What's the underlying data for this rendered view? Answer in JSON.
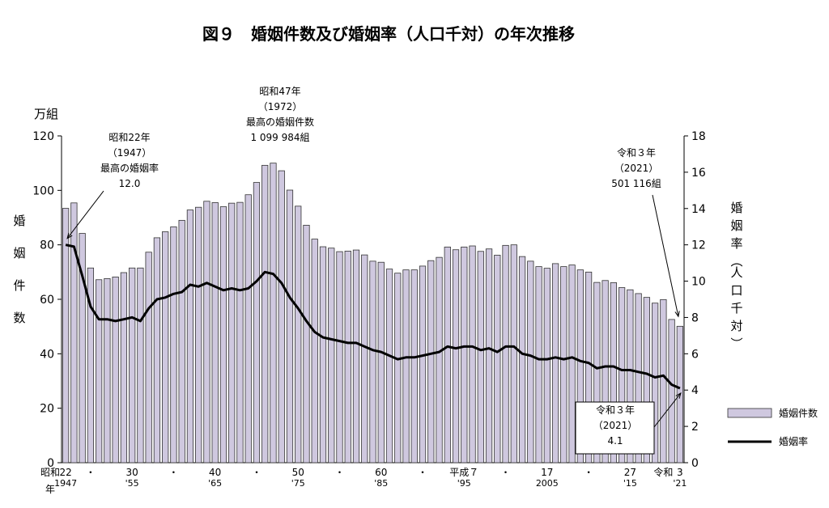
{
  "title": "図９　婚姻件数及び婚姻率（人口千対）の年次推移",
  "chart_data": {
    "type": "bar+line",
    "left_axis": {
      "unit": "万組",
      "label": "婚姻件数",
      "ticks": [
        "0",
        "20",
        "40",
        "60",
        "80",
        "100",
        "120"
      ],
      "range": [
        0,
        120
      ]
    },
    "right_axis": {
      "label": "婚姻率（人口千対）",
      "ticks": [
        "0",
        "2",
        "4",
        "6",
        "8",
        "10",
        "12",
        "14",
        "16",
        "18"
      ],
      "range": [
        0,
        18
      ]
    },
    "x_axis": {
      "era_label_top": "昭和",
      "era_label_bottom": "年",
      "ticks": [
        {
          "year": 1947,
          "top": "22",
          "bottom": "1947"
        },
        {
          "year": 1950,
          "top": "・",
          "bottom": ""
        },
        {
          "year": 1955,
          "top": "30",
          "bottom": "'55"
        },
        {
          "year": 1960,
          "top": "・",
          "bottom": ""
        },
        {
          "year": 1965,
          "top": "40",
          "bottom": "'65"
        },
        {
          "year": 1970,
          "top": "・",
          "bottom": ""
        },
        {
          "year": 1975,
          "top": "50",
          "bottom": "'75"
        },
        {
          "year": 1980,
          "top": "・",
          "bottom": ""
        },
        {
          "year": 1985,
          "top": "60",
          "bottom": "'85"
        },
        {
          "year": 1990,
          "top": "・",
          "bottom": ""
        },
        {
          "year": 1995,
          "top": "平成７",
          "bottom": "'95"
        },
        {
          "year": 2000,
          "top": "・",
          "bottom": ""
        },
        {
          "year": 2005,
          "top": "17",
          "bottom": "2005"
        },
        {
          "year": 2010,
          "top": "・",
          "bottom": ""
        },
        {
          "year": 2015,
          "top": "27",
          "bottom": "'15"
        },
        {
          "year": 2019,
          "top": "令和",
          "bottom": ""
        },
        {
          "year": 2021,
          "top": "3",
          "bottom": "'21"
        }
      ]
    },
    "series": [
      {
        "name": "婚姻件数",
        "kind": "bar",
        "axis": "left",
        "years": [
          1947,
          1948,
          1949,
          1950,
          1951,
          1952,
          1953,
          1954,
          1955,
          1956,
          1957,
          1958,
          1959,
          1960,
          1961,
          1962,
          1963,
          1964,
          1965,
          1966,
          1967,
          1968,
          1969,
          1970,
          1971,
          1972,
          1973,
          1974,
          1975,
          1976,
          1977,
          1978,
          1979,
          1980,
          1981,
          1982,
          1983,
          1984,
          1985,
          1986,
          1987,
          1988,
          1989,
          1990,
          1991,
          1992,
          1993,
          1994,
          1995,
          1996,
          1997,
          1998,
          1999,
          2000,
          2001,
          2002,
          2003,
          2004,
          2005,
          2006,
          2007,
          2008,
          2009,
          2010,
          2011,
          2012,
          2013,
          2014,
          2015,
          2016,
          2017,
          2018,
          2019,
          2020,
          2021
        ],
        "values": [
          93.4,
          95.4,
          84.2,
          71.5,
          67.2,
          67.6,
          68.2,
          69.8,
          71.5,
          71.5,
          77.3,
          82.6,
          84.8,
          86.6,
          89.0,
          92.8,
          93.8,
          96.0,
          95.5,
          94.0,
          95.3,
          95.6,
          98.4,
          102.9,
          109.2,
          110.0,
          107.2,
          100.1,
          94.2,
          87.2,
          82.1,
          79.3,
          78.8,
          77.5,
          77.7,
          78.1,
          76.3,
          74.0,
          73.6,
          71.1,
          69.6,
          70.8,
          70.8,
          72.2,
          74.2,
          75.4,
          79.2,
          78.2,
          79.2,
          79.6,
          77.6,
          78.5,
          76.2,
          79.8,
          80.0,
          75.7,
          74.0,
          72.0,
          71.4,
          73.1,
          72.0,
          72.6,
          70.8,
          70.0,
          66.2,
          66.9,
          66.1,
          64.3,
          63.5,
          62.1,
          60.7,
          58.6,
          59.9,
          52.6,
          50.1
        ]
      },
      {
        "name": "婚姻率",
        "kind": "line",
        "axis": "right",
        "years": [
          1947,
          1948,
          1949,
          1950,
          1951,
          1952,
          1953,
          1954,
          1955,
          1956,
          1957,
          1958,
          1959,
          1960,
          1961,
          1962,
          1963,
          1964,
          1965,
          1966,
          1967,
          1968,
          1969,
          1970,
          1971,
          1972,
          1973,
          1974,
          1975,
          1976,
          1977,
          1978,
          1979,
          1980,
          1981,
          1982,
          1983,
          1984,
          1985,
          1986,
          1987,
          1988,
          1989,
          1990,
          1991,
          1992,
          1993,
          1994,
          1995,
          1996,
          1997,
          1998,
          1999,
          2000,
          2001,
          2002,
          2003,
          2004,
          2005,
          2006,
          2007,
          2008,
          2009,
          2010,
          2011,
          2012,
          2013,
          2014,
          2015,
          2016,
          2017,
          2018,
          2019,
          2020,
          2021
        ],
        "values": [
          12.0,
          11.9,
          10.3,
          8.6,
          7.9,
          7.9,
          7.8,
          7.9,
          8.0,
          7.8,
          8.5,
          9.0,
          9.1,
          9.3,
          9.4,
          9.8,
          9.7,
          9.9,
          9.7,
          9.5,
          9.6,
          9.5,
          9.6,
          10.0,
          10.5,
          10.4,
          9.9,
          9.1,
          8.5,
          7.8,
          7.2,
          6.9,
          6.8,
          6.7,
          6.6,
          6.6,
          6.4,
          6.2,
          6.1,
          5.9,
          5.7,
          5.8,
          5.8,
          5.9,
          6.0,
          6.1,
          6.4,
          6.3,
          6.4,
          6.4,
          6.2,
          6.3,
          6.1,
          6.4,
          6.4,
          6.0,
          5.9,
          5.7,
          5.7,
          5.8,
          5.7,
          5.8,
          5.6,
          5.5,
          5.2,
          5.3,
          5.3,
          5.1,
          5.1,
          5.0,
          4.9,
          4.7,
          4.8,
          4.3,
          4.1
        ]
      }
    ],
    "legend": {
      "position": "right",
      "items": [
        {
          "label": "婚姻件数",
          "kind": "bar"
        },
        {
          "label": "婚姻率",
          "kind": "line"
        }
      ]
    },
    "annotations": [
      {
        "id": "ann1947",
        "lines": [
          "昭和22年",
          "（1947）",
          "最高の婚姻率",
          "12.0"
        ],
        "target_year": 1947,
        "target_series": "婚姻率"
      },
      {
        "id": "ann1972",
        "lines": [
          "昭和47年",
          "（1972）",
          "最高の婚姻件数",
          "1 099 984組"
        ],
        "target_year": 1972,
        "target_series": "婚姻件数"
      },
      {
        "id": "ann2021count",
        "lines": [
          "令和３年",
          "（2021）",
          "501 116組"
        ],
        "target_year": 2021,
        "target_series": "婚姻件数"
      },
      {
        "id": "ann2021rate",
        "lines": [
          "令和３年",
          "（2021）",
          "4.1"
        ],
        "target_year": 2021,
        "target_series": "婚姻率",
        "boxed": true
      }
    ],
    "colors": {
      "bar_fill": "#cfc8df",
      "bar_stroke": "#333333",
      "line": "#000000"
    }
  }
}
